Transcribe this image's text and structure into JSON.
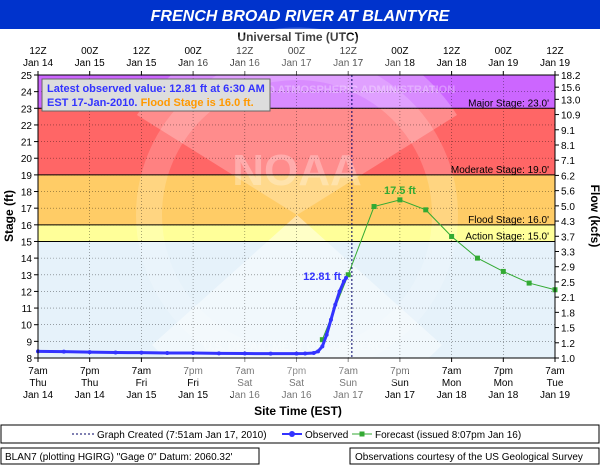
{
  "header": {
    "title": "FRENCH BROAD RIVER  AT BLANTYRE",
    "top_axis_title": "Universal Time (UTC)",
    "bottom_axis_title": "Site Time (EST)",
    "left_axis_title": "Stage (ft)",
    "right_axis_title": "Flow (kcfs)"
  },
  "info_box": {
    "line1": "Latest observed value: 12.81 ft at 6:30 AM",
    "line2_prefix": "EST 17-Jan-2010. ",
    "line2_flood": "Flood Stage is 16.0 ft."
  },
  "watermark": {
    "center": "NOAA",
    "ring_text": "NATIONAL OCEANIC AND ATMOSPHERIC ADMINISTRATION",
    "bottom_text": "U.S. DEPARTMENT OF COMMERCE"
  },
  "legend": {
    "created": "Graph Created (7:51am Jan 17, 2010)",
    "observed": "Observed",
    "forecast": "Forecast (issued 8:07pm Jan 16)"
  },
  "footer": {
    "left": "BLAN7 (plotting HGIRG)  \"Gage 0\" Datum: 2060.32'",
    "right": "Observations courtesy of the  US Geological Survey"
  },
  "colors": {
    "title_bg": "#0033cc",
    "plot_bg": "#e6f2fa",
    "action_band": "#ffff99",
    "flood_band": "#ffcc66",
    "moderate_band": "#ff6666",
    "major_band": "#cc66ff",
    "observed": "#3333ff",
    "forecast": "#33aa33",
    "flood_text": "#ff9900",
    "info_text": "#3333ff"
  },
  "chart_data": {
    "type": "line",
    "ylim": [
      8,
      25
    ],
    "y_ticks": [
      8,
      9,
      10,
      11,
      12,
      13,
      14,
      15,
      16,
      17,
      18,
      19,
      20,
      21,
      22,
      23,
      24,
      25
    ],
    "right_ticks": [
      "1.0",
      "1.2",
      "1.5",
      "1.8",
      "2.1",
      "2.5",
      "2.9",
      "3.3",
      "3.7",
      "4.3",
      "5.0",
      "5.6",
      "6.2",
      "7.1",
      "8.1",
      "9.1",
      "10.9",
      "13.0",
      "15.6",
      "18.2"
    ],
    "right_tick_stage": [
      8,
      9,
      10,
      11,
      12,
      13,
      14,
      15,
      16,
      17,
      18,
      19,
      20,
      21,
      22,
      23,
      24,
      25,
      25.8,
      26.6
    ],
    "x_unit": "hours after 7am EST Jan 14",
    "xlim": [
      0,
      120
    ],
    "top_ticks": [
      {
        "h": 0,
        "l1": "12Z",
        "l2": "Jan 14"
      },
      {
        "h": 12,
        "l1": "00Z",
        "l2": "Jan 15"
      },
      {
        "h": 24,
        "l1": "12Z",
        "l2": "Jan 15"
      },
      {
        "h": 36,
        "l1": "00Z",
        "l2": "Jan 16"
      },
      {
        "h": 48,
        "l1": "12Z",
        "l2": "Jan 16"
      },
      {
        "h": 60,
        "l1": "00Z",
        "l2": "Jan 17"
      },
      {
        "h": 72,
        "l1": "12Z",
        "l2": "Jan 17"
      },
      {
        "h": 84,
        "l1": "00Z",
        "l2": "Jan 18"
      },
      {
        "h": 96,
        "l1": "12Z",
        "l2": "Jan 18"
      },
      {
        "h": 108,
        "l1": "00Z",
        "l2": "Jan 19"
      },
      {
        "h": 120,
        "l1": "12Z",
        "l2": "Jan 19"
      }
    ],
    "bottom_ticks": [
      {
        "h": 0,
        "l1": "7am",
        "l2": "Thu",
        "l3": "Jan 14"
      },
      {
        "h": 12,
        "l1": "7pm",
        "l2": "Thu",
        "l3": "Jan 14"
      },
      {
        "h": 24,
        "l1": "7am",
        "l2": "Fri",
        "l3": "Jan 15"
      },
      {
        "h": 36,
        "l1": "7pm",
        "l2": "Fri",
        "l3": "Jan 15"
      },
      {
        "h": 48,
        "l1": "7am",
        "l2": "Sat",
        "l3": "Jan 16"
      },
      {
        "h": 60,
        "l1": "7pm",
        "l2": "Sat",
        "l3": "Jan 16"
      },
      {
        "h": 72,
        "l1": "7am",
        "l2": "Sun",
        "l3": "Jan 17"
      },
      {
        "h": 84,
        "l1": "7pm",
        "l2": "Sun",
        "l3": "Jan 17"
      },
      {
        "h": 96,
        "l1": "7am",
        "l2": "Mon",
        "l3": "Jan 18"
      },
      {
        "h": 108,
        "l1": "7pm",
        "l2": "Mon",
        "l3": "Jan 18"
      },
      {
        "h": 120,
        "l1": "7am",
        "l2": "Tue",
        "l3": "Jan 19"
      }
    ],
    "bands": [
      {
        "name": "Action Stage",
        "from": 15,
        "to": 16,
        "label": "Action Stage: 15.0'"
      },
      {
        "name": "Flood Stage",
        "from": 16,
        "to": 19,
        "label": "Flood Stage: 16.0'"
      },
      {
        "name": "Moderate Stage",
        "from": 19,
        "to": 23,
        "label": "Moderate Stage: 19.0'"
      },
      {
        "name": "Major Stage",
        "from": 23,
        "to": 25,
        "label": "Major Stage: 23.0'"
      }
    ],
    "graph_created_h": 72.85,
    "observed": {
      "name": "Observed",
      "x": [
        0,
        6,
        12,
        18,
        24,
        30,
        36,
        42,
        48,
        54,
        60,
        62,
        64,
        65,
        66,
        67,
        68,
        69,
        70,
        71,
        71.5
      ],
      "y": [
        8.4,
        8.38,
        8.35,
        8.33,
        8.32,
        8.3,
        8.3,
        8.28,
        8.27,
        8.26,
        8.26,
        8.27,
        8.3,
        8.4,
        8.7,
        9.4,
        10.3,
        11.2,
        12.0,
        12.6,
        12.81
      ],
      "peak_label": "12.81 ft"
    },
    "forecast": {
      "name": "Forecast (issued 8:07pm Jan 16)",
      "x": [
        66,
        72,
        78,
        84,
        90,
        96,
        102,
        108,
        114,
        120
      ],
      "y": [
        9.1,
        13.0,
        17.1,
        17.5,
        16.9,
        15.3,
        14.0,
        13.2,
        12.5,
        12.1
      ],
      "peak_label": "17.5 ft"
    }
  }
}
